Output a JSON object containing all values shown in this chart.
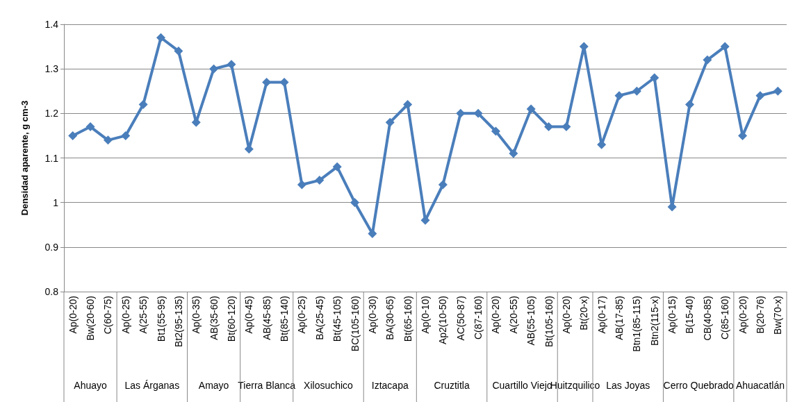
{
  "chart_data": {
    "type": "line",
    "ylabel": "Densidad aparente, g cm-3",
    "categories": [
      "Ap(0-20)",
      "Bw(20-60)",
      "C(60-75)",
      "Ap(0-25)",
      "A(25-55)",
      "Bt1(55-95)",
      "Bt2(95-135)",
      "Ap(0-35)",
      "AB(35-60)",
      "Bt(60-120)",
      "Ap(0-45)",
      "AB(45-85)",
      "Bt(85-140)",
      "Ap(0-25)",
      "BA(25-45)",
      "Bt(45-105)",
      "BC(105-160)",
      "Ap(0-30)",
      "BA(30-65)",
      "Bt(65-160)",
      "Ap(0-10)",
      "Ap2(10-50)",
      "AC(50-87)",
      "C(87-160)",
      "Ap(0-20)",
      "A(20-55)",
      "AB(55-105)",
      "Bt(105-160)",
      "Ap(0-20)",
      "Bt(20-x)",
      "Ap(0-17)",
      "AB(17-85)",
      "Btn1(85-115)",
      "Btn2(115-x)",
      "Ap(0-15)",
      "B(15-40)",
      "CB(40-85)",
      "C(85-160)",
      "Ap(0-20)",
      "B(20-76)",
      "Bw(70-x)"
    ],
    "series": [
      {
        "color": "#4a7ebb",
        "values": [
          1.15,
          1.17,
          1.14,
          1.15,
          1.22,
          1.37,
          1.34,
          1.18,
          1.3,
          1.31,
          1.12,
          1.27,
          1.27,
          1.04,
          1.05,
          1.08,
          1.0,
          0.93,
          1.18,
          1.22,
          0.96,
          1.04,
          1.2,
          1.2,
          1.16,
          1.11,
          1.21,
          1.17,
          1.17,
          1.35,
          1.13,
          1.24,
          1.25,
          1.28,
          0.99,
          1.22,
          1.32,
          1.35,
          1.15,
          1.24,
          1.25
        ]
      }
    ],
    "annotations": [
      "Ahuayo",
      "Las Árganas",
      "Amayo",
      "Tierra Blanca",
      "Xilosuchico",
      "Iztacapa",
      "Cruztitla",
      "Cuartillo Viejo",
      "Huitzquilico",
      "Las Joyas",
      "Cerro Quebrado",
      "Ahuacatlán"
    ],
    "ylim": [
      0.8,
      1.4
    ],
    "yticks": [
      0.8,
      0.9,
      1,
      1.1,
      1.2,
      1.3,
      1.4
    ],
    "grid": "y",
    "marker": "diamond",
    "line_style": "solid"
  }
}
